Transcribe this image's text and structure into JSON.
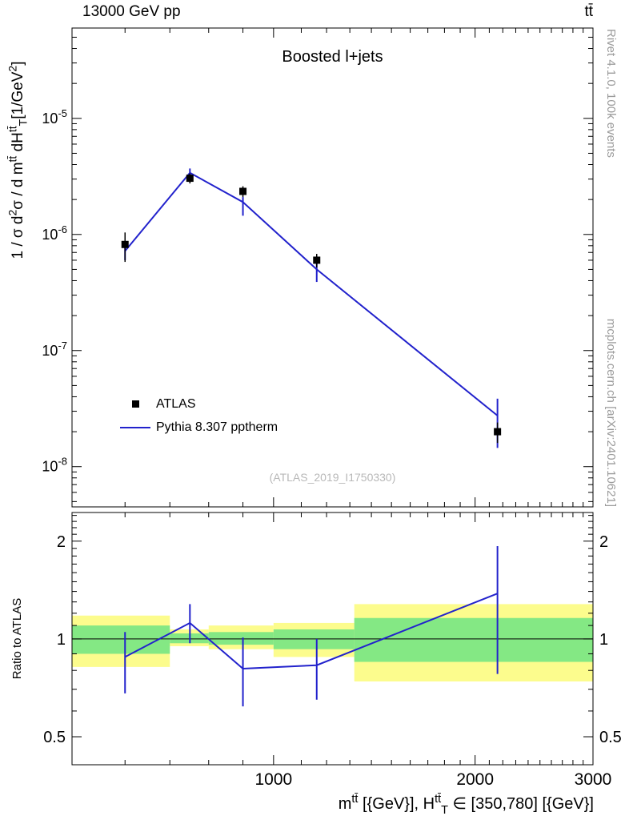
{
  "header": {
    "left": "13000 GeV pp",
    "right": "tt̄"
  },
  "watermarks": {
    "analysis": "(ATLAS_2019_I1750330)",
    "rivet": "Rivet 4.1.0,  100k events",
    "mcplots": "mcplots.cern.ch [arXiv:2401.10621]"
  },
  "colors": {
    "model_blue": "#2222cc",
    "band_yellow": "#fcfc8d",
    "band_green": "#84e884",
    "gray_text": "#9b9b9b",
    "watermark_gray": "#b8b8b8"
  },
  "chart_data": [
    {
      "type": "line",
      "panel": "main",
      "title": "Boosted l+jets",
      "xscale": "log",
      "xlim": [
        500,
        3000
      ],
      "xticks": [
        {
          "value": 1000,
          "label": "1000"
        },
        {
          "value": 2000,
          "label": "2000"
        },
        {
          "value": 3000,
          "label": "3000"
        }
      ],
      "yscale": "log",
      "ylim": [
        4.5e-09,
        6e-05
      ],
      "yticks": [
        {
          "value": 1e-05,
          "base": "10",
          "exp": "-5"
        },
        {
          "value": 1e-06,
          "base": "10",
          "exp": "-6"
        },
        {
          "value": 1e-07,
          "base": "10",
          "exp": "-7"
        },
        {
          "value": 1e-08,
          "base": "10",
          "exp": "-8"
        }
      ],
      "ylabel_segments": [
        {
          "t": "1 / "
        },
        {
          "t": "σ"
        },
        {
          "t": " d"
        },
        {
          "t": "2",
          "style": "sup"
        },
        {
          "t": "σ"
        },
        {
          "t": " / d m"
        },
        {
          "t": "tt̄",
          "style": "sup"
        },
        {
          "t": " dH"
        },
        {
          "t": "tt̄",
          "style": "sup"
        },
        {
          "t": "T",
          "style": "sub"
        },
        {
          "t": "[1/GeV"
        },
        {
          "t": "2",
          "style": "sup"
        },
        {
          "t": "]"
        }
      ],
      "series": [
        {
          "name": "ATLAS",
          "role": "data",
          "marker": "square",
          "color": "#000000",
          "x": [
            600,
            750,
            900,
            1160,
            2160
          ],
          "y": [
            8.2e-07,
            3.05e-06,
            2.35e-06,
            6e-07,
            2e-08
          ],
          "yerr_lo": [
            2.4e-07,
            3e-07,
            2.5e-07,
            8e-08,
            4e-09
          ],
          "yerr_hi": [
            2.2e-07,
            3e-07,
            2.5e-07,
            8e-08,
            4e-09
          ]
        },
        {
          "name": "Pythia 8.307 pptherm",
          "role": "model",
          "draw": "line",
          "color": "#2222cc",
          "x": [
            600,
            750,
            900,
            1160,
            2160
          ],
          "y": [
            7.2e-07,
            3.4e-06,
            1.9e-06,
            5e-07,
            2.75e-08
          ],
          "yerr_lo": [
            1.2e-07,
            3.2e-07,
            4.5e-07,
            1.1e-07,
            1.3e-08
          ],
          "yerr_hi": [
            1.1e-07,
            3e-07,
            2e-07,
            1e-07,
            1.1e-08
          ]
        }
      ]
    },
    {
      "type": "line",
      "panel": "ratio",
      "ylabel": "Ratio to ATLAS",
      "yscale": "log",
      "ylim": [
        0.41,
        2.45
      ],
      "yticks": [
        {
          "value": 2,
          "label": "2"
        },
        {
          "value": 1,
          "label": "1"
        },
        {
          "value": 0.5,
          "label": "0.5"
        }
      ],
      "reference_line": 1,
      "xlabel_segments": [
        {
          "t": "m"
        },
        {
          "t": "tt̄",
          "style": "sup"
        },
        {
          "t": " [{GeV}], H"
        },
        {
          "t": "tt̄",
          "style": "sup"
        },
        {
          "t": "T",
          "style": "sub"
        },
        {
          "t": " ∈ [350,780] [{GeV}]"
        }
      ],
      "bands": {
        "bin_edges": [
          500,
          700,
          800,
          1000,
          1320,
          3000
        ],
        "yellow": [
          [
            0.82,
            1.18
          ],
          [
            0.95,
            1.07
          ],
          [
            0.93,
            1.1
          ],
          [
            0.88,
            1.12
          ],
          [
            0.74,
            1.28
          ]
        ],
        "green": [
          [
            0.9,
            1.1
          ],
          [
            0.97,
            1.04
          ],
          [
            0.96,
            1.05
          ],
          [
            0.93,
            1.07
          ],
          [
            0.85,
            1.16
          ]
        ]
      },
      "series": [
        {
          "name": "Pythia 8.307 pptherm / ATLAS",
          "color": "#2222cc",
          "x": [
            600,
            750,
            900,
            1160,
            2160
          ],
          "y": [
            0.88,
            1.12,
            0.81,
            0.83,
            1.38
          ],
          "yerr_lo": [
            0.2,
            0.15,
            0.19,
            0.18,
            0.6
          ],
          "yerr_hi": [
            0.17,
            0.16,
            0.2,
            0.17,
            0.55
          ]
        }
      ]
    }
  ]
}
